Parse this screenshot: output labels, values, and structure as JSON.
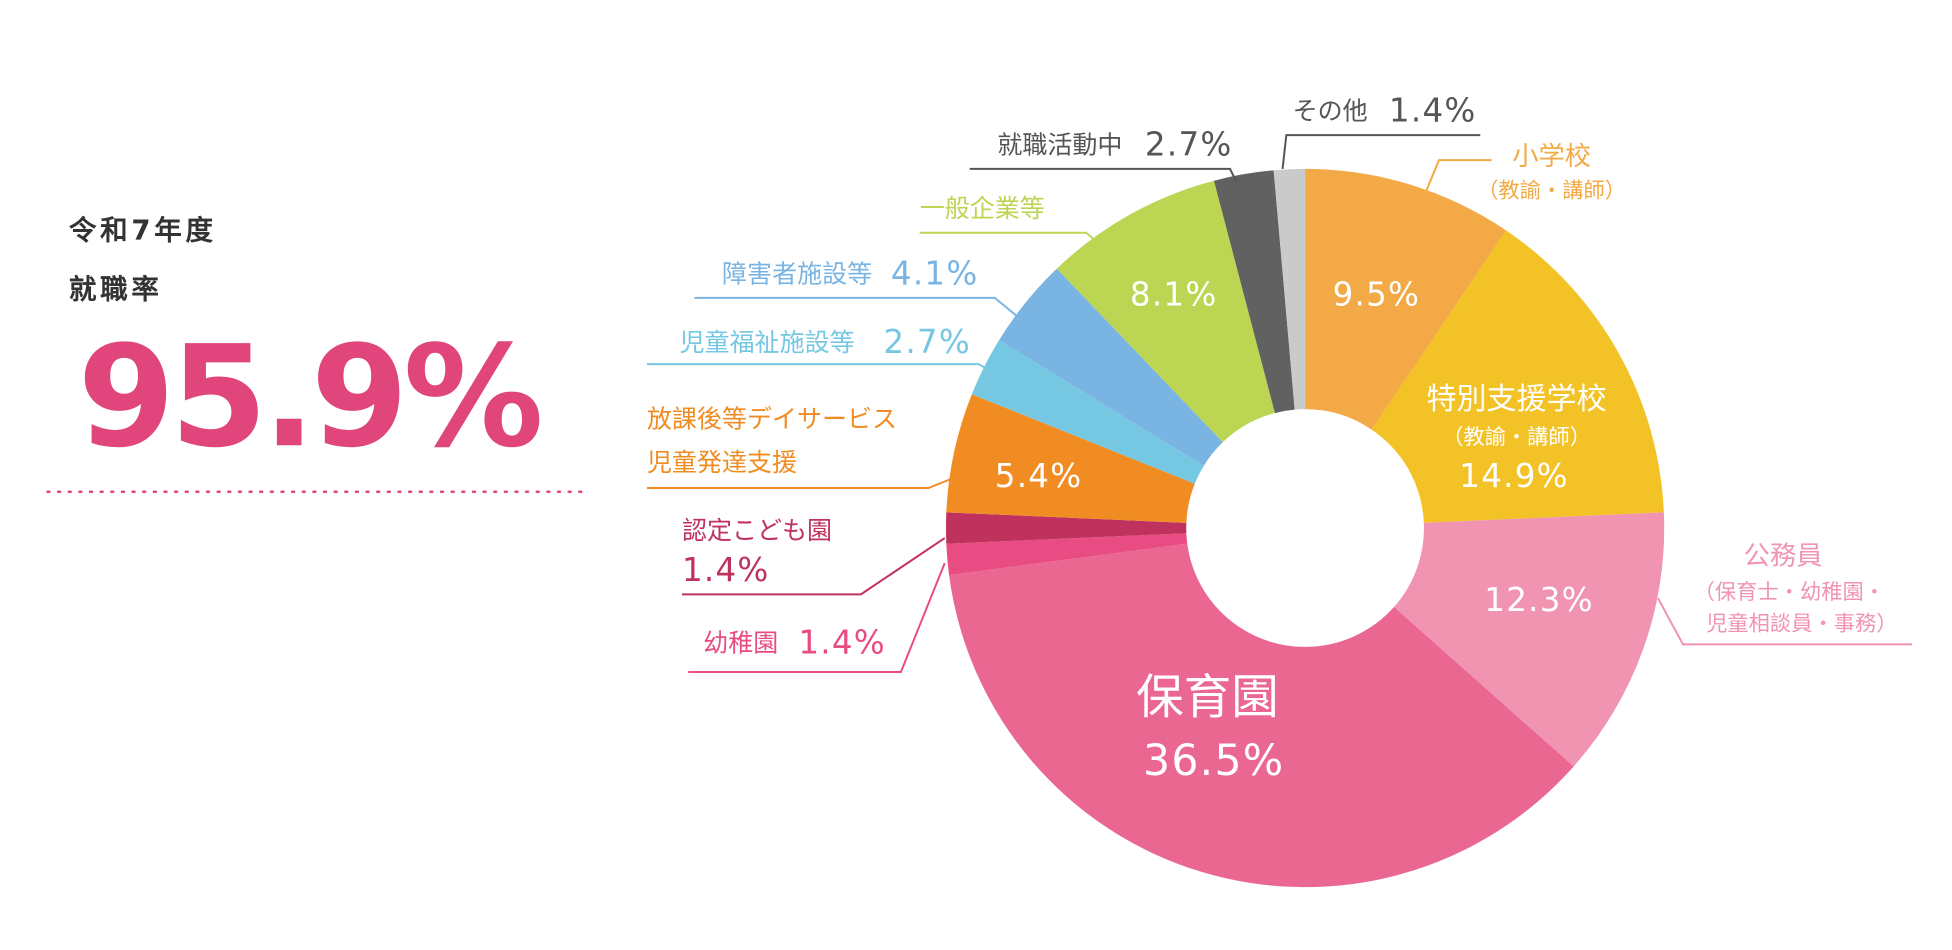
{
  "chart_data": {
    "type": "donut",
    "summary": {
      "lines": [
        "令和7年度",
        "就職率"
      ],
      "rate": 95.9,
      "rate_label": "95.9%"
    },
    "categories": [
      [
        "小学校",
        "（教諭・講師）"
      ],
      [
        "特別支援学校",
        "（教諭・講師）"
      ],
      [
        "公務員",
        "（保育士・幼稚園・",
        "児童相談員・事務）"
      ],
      [
        "保育園"
      ],
      [
        "幼稚園"
      ],
      [
        "認定こども園"
      ],
      [
        "放課後等デイサービス",
        "児童発達支援"
      ],
      [
        "児童福祉施設等"
      ],
      [
        "障害者施設等"
      ],
      [
        "一般企業等"
      ],
      [
        "就職活動中"
      ],
      [
        "その他"
      ]
    ],
    "values": [
      9.5,
      14.9,
      12.3,
      36.5,
      1.4,
      1.4,
      5.4,
      2.7,
      4.1,
      8.1,
      2.7,
      1.4
    ],
    "value_labels": [
      "9.5%",
      "14.9%",
      "12.3%",
      "36.5%",
      "1.4%",
      "1.4%",
      "5.4%",
      "2.7%",
      "4.1%",
      "8.1%",
      "2.7%",
      "1.4%"
    ],
    "colors": [
      "#f3a945",
      "#f3c226",
      "#f094b1",
      "#ea6792",
      "#e84c83",
      "#c0325e",
      "#f08c22",
      "#76c8e2",
      "#7ab4e3",
      "#bcd653",
      "#616161",
      "#cacaca"
    ]
  }
}
